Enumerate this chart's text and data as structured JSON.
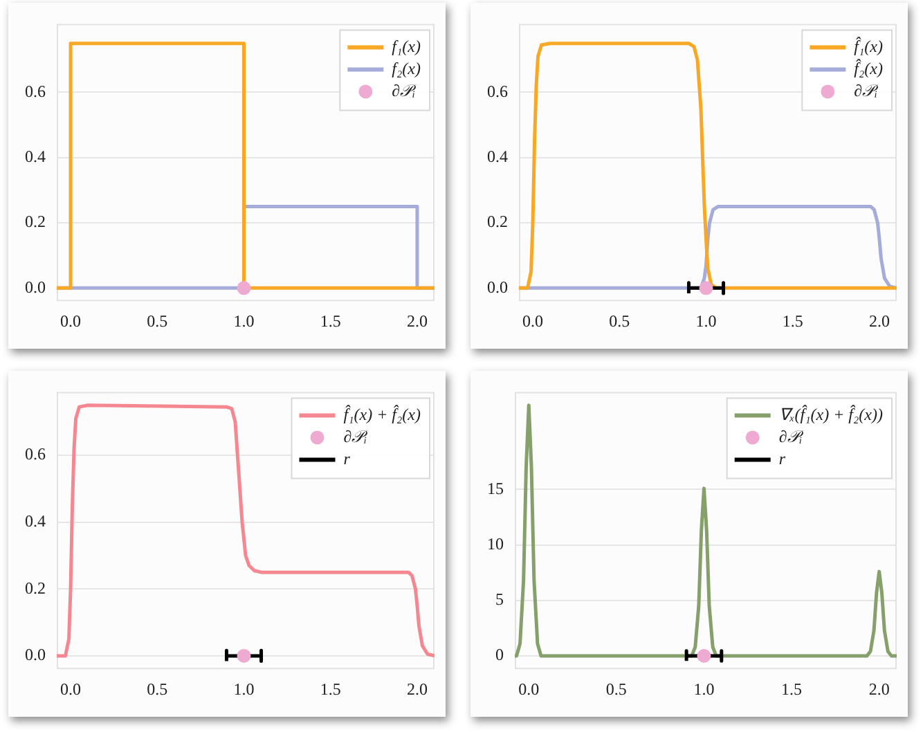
{
  "chart_data": [
    {
      "type": "line",
      "xlim": [
        -0.08,
        2.1
      ],
      "ylim": [
        -0.04,
        0.81
      ],
      "xticks": [
        {
          "value": 0,
          "label": "0.0"
        },
        {
          "value": 0.5,
          "label": "0.5"
        },
        {
          "value": 1,
          "label": "1.0"
        },
        {
          "value": 1.5,
          "label": "1.5"
        },
        {
          "value": 2,
          "label": "2.0"
        }
      ],
      "yticks": [
        {
          "value": 0,
          "label": "0.0"
        },
        {
          "value": 0.2,
          "label": "0.2"
        },
        {
          "value": 0.4,
          "label": "0.4"
        },
        {
          "value": 0.6,
          "label": "0.6"
        }
      ],
      "grid": "y",
      "legend": "top right",
      "series": [
        {
          "name": "f₁(x)",
          "color": "#f9a825",
          "x": [
            -0.08,
            0,
            0,
            1,
            1,
            2.1
          ],
          "values": [
            0,
            0,
            0.75,
            0.75,
            0,
            0
          ]
        },
        {
          "name": "f₂(x)",
          "color": "#a5acd9",
          "x": [
            -0.08,
            1,
            1,
            2,
            2,
            2.1
          ],
          "values": [
            0,
            0,
            0.25,
            0.25,
            0,
            0
          ]
        },
        {
          "name": "∂𝒫ᵢ",
          "type": "scatter",
          "marker": "circle",
          "color": "#eeaad0",
          "x": [
            1
          ],
          "values": [
            0
          ]
        }
      ]
    },
    {
      "type": "line",
      "xlim": [
        -0.08,
        2.1
      ],
      "ylim": [
        -0.04,
        0.81
      ],
      "xticks": [
        {
          "value": 0,
          "label": "0.0"
        },
        {
          "value": 0.5,
          "label": "0.5"
        },
        {
          "value": 1,
          "label": "1.0"
        },
        {
          "value": 1.5,
          "label": "1.5"
        },
        {
          "value": 2,
          "label": "2.0"
        }
      ],
      "yticks": [
        {
          "value": 0,
          "label": "0.0"
        },
        {
          "value": 0.2,
          "label": "0.2"
        },
        {
          "value": 0.4,
          "label": "0.4"
        },
        {
          "value": 0.6,
          "label": "0.6"
        }
      ],
      "grid": "y",
      "legend": "top right",
      "series": [
        {
          "name": "f̂₁(x)",
          "color": "#f9a825",
          "x": [
            -0.08,
            -0.03,
            -0.01,
            0,
            0.01,
            0.02,
            0.03,
            0.05,
            0.1,
            0.9,
            0.93,
            0.95,
            0.97,
            0.99,
            1,
            1.01,
            1.03,
            1.06,
            2.1
          ],
          "values": [
            0,
            0,
            0.05,
            0.2,
            0.45,
            0.62,
            0.71,
            0.745,
            0.75,
            0.75,
            0.74,
            0.7,
            0.55,
            0.25,
            0.15,
            0.06,
            0.01,
            0,
            0
          ]
        },
        {
          "name": "f̂₂(x)",
          "color": "#a5acd9",
          "x": [
            -0.08,
            0.97,
            0.99,
            1,
            1.01,
            1.02,
            1.04,
            1.07,
            1.95,
            1.97,
            1.99,
            2,
            2.01,
            2.03,
            2.06,
            2.1
          ],
          "values": [
            0,
            0,
            0.03,
            0.07,
            0.15,
            0.2,
            0.24,
            0.25,
            0.25,
            0.24,
            0.2,
            0.15,
            0.09,
            0.03,
            0.005,
            0
          ]
        },
        {
          "name": "∂𝒫ᵢ",
          "type": "scatter",
          "marker": "circle",
          "color": "#eeaad0",
          "x": [
            1
          ],
          "values": [
            0
          ]
        },
        {
          "color": "#000000",
          "x": [
            0.9,
            0.9,
            0.9,
            1.1,
            1.1,
            1.1
          ],
          "values": [
            -0.016,
            0.016,
            0,
            0,
            0.016,
            -0.016
          ]
        }
      ]
    },
    {
      "type": "line",
      "xlim": [
        -0.08,
        2.1
      ],
      "ylim": [
        -0.04,
        0.79
      ],
      "xticks": [
        {
          "value": 0,
          "label": "0.0"
        },
        {
          "value": 0.5,
          "label": "0.5"
        },
        {
          "value": 1,
          "label": "1.0"
        },
        {
          "value": 1.5,
          "label": "1.5"
        },
        {
          "value": 2,
          "label": "2.0"
        }
      ],
      "yticks": [
        {
          "value": 0,
          "label": "0.0"
        },
        {
          "value": 0.2,
          "label": "0.2"
        },
        {
          "value": 0.4,
          "label": "0.4"
        },
        {
          "value": 0.6,
          "label": "0.6"
        }
      ],
      "grid": "y",
      "legend": "top right",
      "series": [
        {
          "name": "f̂₁(x) + f̂₂(x)",
          "color": "#f4878f",
          "x": [
            -0.08,
            -0.03,
            -0.01,
            0,
            0.01,
            0.02,
            0.03,
            0.05,
            0.1,
            0.9,
            0.93,
            0.95,
            0.97,
            0.99,
            1.01,
            1.03,
            1.06,
            1.1,
            1.95,
            1.97,
            1.99,
            2,
            2.01,
            2.03,
            2.06,
            2.1
          ],
          "values": [
            0,
            0,
            0.05,
            0.2,
            0.45,
            0.62,
            0.71,
            0.745,
            0.75,
            0.745,
            0.74,
            0.7,
            0.55,
            0.4,
            0.3,
            0.27,
            0.255,
            0.25,
            0.25,
            0.24,
            0.2,
            0.15,
            0.09,
            0.03,
            0.005,
            0
          ]
        },
        {
          "name": "∂𝒫ᵢ",
          "type": "scatter",
          "marker": "circle",
          "color": "#eeaad0",
          "x": [
            1
          ],
          "values": [
            0
          ]
        },
        {
          "name": "r",
          "color": "#000000",
          "x": [
            0.9,
            0.9,
            0.9,
            1.1,
            1.1,
            1.1
          ],
          "values": [
            -0.016,
            0.016,
            0,
            0,
            0.016,
            -0.016
          ]
        }
      ]
    },
    {
      "type": "line",
      "xlim": [
        -0.08,
        2.1
      ],
      "ylim": [
        -1.2,
        23.8
      ],
      "xticks": [
        {
          "value": 0,
          "label": "0.0"
        },
        {
          "value": 0.5,
          "label": "0.5"
        },
        {
          "value": 1,
          "label": "1.0"
        },
        {
          "value": 1.5,
          "label": "1.5"
        },
        {
          "value": 2,
          "label": "2.0"
        }
      ],
      "yticks": [
        0,
        5,
        10,
        15
      ],
      "grid": "y",
      "legend": "top right",
      "series": [
        {
          "name": "∇ₓ(f̂₁(x) + f̂₂(x))",
          "color": "#85a06a",
          "x": [
            -0.08,
            -0.07,
            -0.05,
            -0.03,
            -0.015,
            0,
            0.015,
            0.03,
            0.05,
            0.07,
            0.93,
            0.95,
            0.97,
            0.985,
            1,
            1.015,
            1.03,
            1.05,
            1.07,
            1.93,
            1.95,
            1.97,
            1.985,
            2,
            2.015,
            2.03,
            2.05,
            2.07,
            2.1
          ],
          "values": [
            0,
            0,
            1.1,
            6.8,
            17,
            22.6,
            17,
            6.8,
            1.1,
            0,
            0,
            0.8,
            4.5,
            11.3,
            15.1,
            11.3,
            4.5,
            0.8,
            0,
            0,
            0.4,
            2.3,
            5.7,
            7.6,
            5.7,
            2.3,
            0.4,
            0,
            0
          ]
        },
        {
          "name": "∂𝒫ᵢ",
          "type": "scatter",
          "marker": "circle",
          "color": "#eeaad0",
          "x": [
            1
          ],
          "values": [
            0
          ]
        },
        {
          "name": "r",
          "color": "#000000",
          "x": [
            0.9,
            0.9,
            0.9,
            1.1,
            1.1,
            1.1
          ],
          "values": [
            -0.45,
            0.45,
            0,
            0,
            0.45,
            -0.45
          ]
        }
      ]
    }
  ]
}
